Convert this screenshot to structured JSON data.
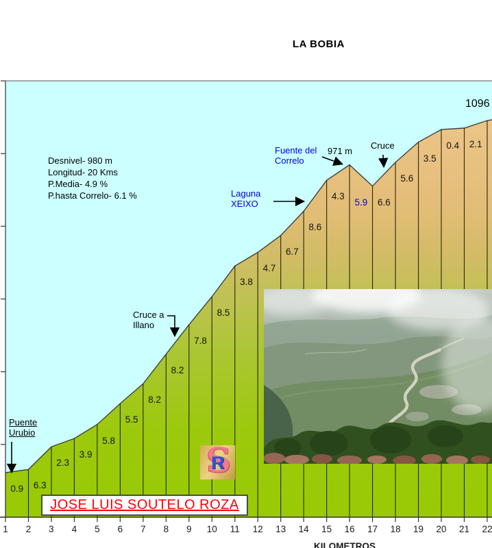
{
  "title": "LA BOBIA",
  "info_box": {
    "lines": [
      "Desnivel- 980 m",
      "Longitud- 20 Kms",
      "P.Media- 4.9 %",
      "P.hasta Correlo- 6.1 %"
    ]
  },
  "annotations": {
    "puente_line1": "Puente",
    "puente_line2": "Urubio",
    "cruce_illano_line1": "Cruce a",
    "cruce_illano_line2": "Illano",
    "laguna_line1": "Laguna",
    "laguna_line2": "XEIXO",
    "fuente_line1": "Fuente del",
    "fuente_line2": "Correlo",
    "altitude_label": "971 m",
    "cruce_label": "Cruce",
    "summit_label": "1096"
  },
  "rider_name": "JOSE LUIS SOUTELO ROZA",
  "logo": {
    "letter_s": "S",
    "letter_r": "R"
  },
  "axis": {
    "x_title": "KILOMETROS"
  },
  "colors": {
    "sky": "#CCFFFF",
    "profile_bottom_green": "#99CA04",
    "profile_top_tan": "#EECA8E",
    "annotation_blue": "#0000DD",
    "rider_name_red": "#FF0000"
  },
  "chart_data": {
    "type": "area",
    "title": "LA BOBIA",
    "xlabel": "KILOMETROS",
    "x_ticks": [
      1,
      2,
      3,
      4,
      5,
      6,
      7,
      8,
      9,
      10,
      11,
      12,
      13,
      14,
      15,
      16,
      17,
      18,
      19,
      20,
      21,
      22
    ],
    "elevation_m_at_km": [
      116,
      125,
      188,
      211,
      250,
      308,
      363,
      445,
      527,
      605,
      690,
      728,
      775,
      842,
      928,
      971,
      912,
      978,
      1034,
      1069,
      1073,
      1094
    ],
    "segment_gradient_pct": [
      "0.9",
      "6.3",
      "2.3",
      "3.9",
      "5.8",
      "5.5",
      "8.2",
      "8.2",
      "7.8",
      "8.5",
      "3.8",
      "4.7",
      "6.7",
      "8.6",
      "4.3",
      "5.9",
      "6.6",
      "5.6",
      "3.5",
      "0.4",
      "2.1"
    ],
    "descent_segment_index": 15,
    "summit_elevation_m": 1096,
    "marked_elevation_m": 971,
    "total_climb_m": 980,
    "length_km": 20,
    "avg_gradient_pct": 4.9,
    "gradient_to_correlo_pct": 6.1,
    "legend": "none",
    "grid": "off"
  }
}
